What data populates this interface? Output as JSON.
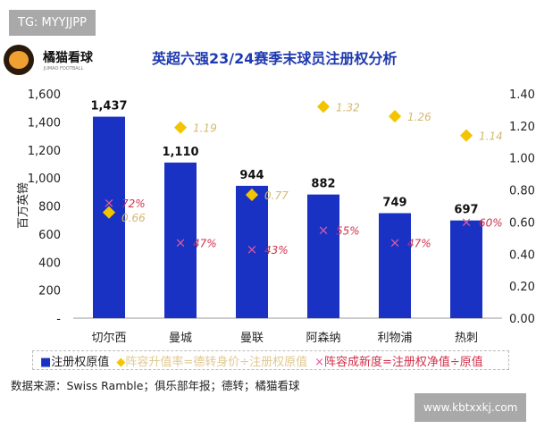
{
  "watermarks": {
    "top": "TG: MYYJJPP",
    "bottom": "www.kbtxxkj.com"
  },
  "logo": {
    "name": "橘猫看球",
    "sub": "JUMAO FOOTBALL"
  },
  "source": "数据来源：Swiss Ramble；俱乐部年报；德转；橘猫看球",
  "colors": {
    "bar": "#1a32c4",
    "diamond": "#f2c500",
    "diamond_label": "#d4b870",
    "cross": "#e05c9a",
    "cross_label": "#d0304a"
  },
  "chart_data": {
    "type": "bar",
    "title": "英超六强23/24赛季末球员注册权分析",
    "ylabel": "百万英镑",
    "ylim": [
      0,
      1600
    ],
    "y2lim": [
      0,
      1.4
    ],
    "grid": false,
    "legend_placement": "bottom",
    "yticks": [
      "-",
      "200",
      "400",
      "600",
      "800",
      "1,000",
      "1,200",
      "1,400",
      "1,600"
    ],
    "y2ticks": [
      "0.00",
      "0.20",
      "0.40",
      "0.60",
      "0.80",
      "1.00",
      "1.20",
      "1.40"
    ],
    "categories": [
      "切尔西",
      "曼城",
      "曼联",
      "阿森纳",
      "利物浦",
      "热刺"
    ],
    "series": [
      {
        "name": "注册权原值",
        "type": "bar",
        "axis": "left",
        "values": [
          1437,
          1110,
          944,
          882,
          749,
          697
        ],
        "labels": [
          "1,437",
          "1,110",
          "944",
          "882",
          "749",
          "697"
        ]
      },
      {
        "name": "阵容升值率=德转身价÷注册权原值",
        "type": "diamond",
        "axis": "right",
        "values": [
          0.66,
          1.19,
          0.77,
          1.32,
          1.26,
          1.14
        ],
        "labels": [
          "0.66",
          "1.19",
          "0.77",
          "1.32",
          "1.26",
          "1.14"
        ]
      },
      {
        "name": "阵容成新度=注册权净值÷原值",
        "type": "cross",
        "axis": "right",
        "values": [
          0.72,
          0.47,
          0.43,
          0.55,
          0.47,
          0.6
        ],
        "labels": [
          "72%",
          "47%",
          "43%",
          "55%",
          "47%",
          "60%"
        ]
      }
    ]
  }
}
